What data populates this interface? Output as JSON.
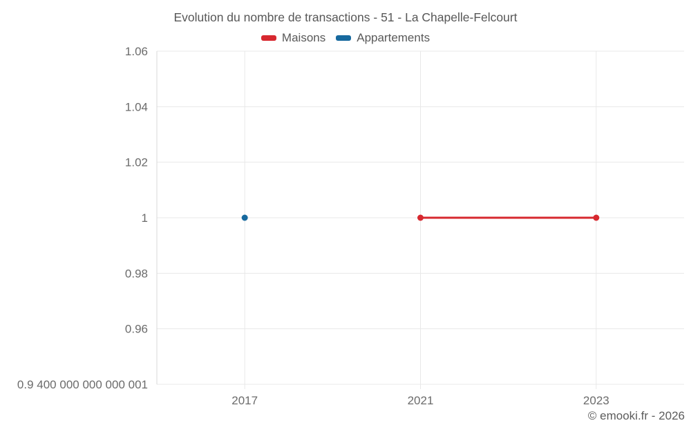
{
  "title": "Evolution du nombre de transactions - 51 - La Chapelle-Felcourt",
  "legend": [
    {
      "label": "Maisons",
      "color": "#d7282f"
    },
    {
      "label": "Appartements",
      "color": "#17699e"
    }
  ],
  "credits": "© emooki.fr - 2026",
  "colors": {
    "gridline": "#e8e8e8",
    "axis_line": "#d9d9d9",
    "tick_label": "#6b6b6b"
  },
  "chart_data": {
    "type": "line",
    "title": "Evolution du nombre de transactions - 51 - La Chapelle-Felcourt",
    "categories": [
      "2017",
      "2021",
      "2023"
    ],
    "series": [
      {
        "name": "Maisons",
        "color": "#d7282f",
        "points": [
          {
            "category": "2021",
            "value": 1
          },
          {
            "category": "2023",
            "value": 1
          }
        ]
      },
      {
        "name": "Appartements",
        "color": "#17699e",
        "points": [
          {
            "category": "2017",
            "value": 1
          }
        ]
      }
    ],
    "yticks": [
      {
        "value": 1.06,
        "label": "1.06"
      },
      {
        "value": 1.04,
        "label": "1.04"
      },
      {
        "value": 1.02,
        "label": "1.02"
      },
      {
        "value": 1.0,
        "label": "1"
      },
      {
        "value": 0.98,
        "label": "0.98"
      },
      {
        "value": 0.96,
        "label": "0.96"
      },
      {
        "value": 0.94,
        "label": "0.9 400 000 000 000 001"
      }
    ],
    "ylim": [
      0.94,
      1.06
    ],
    "xlabel": "",
    "ylabel": "",
    "grid": true,
    "legend_position": "top",
    "marker_radius": 4.5,
    "line_width": 3
  }
}
